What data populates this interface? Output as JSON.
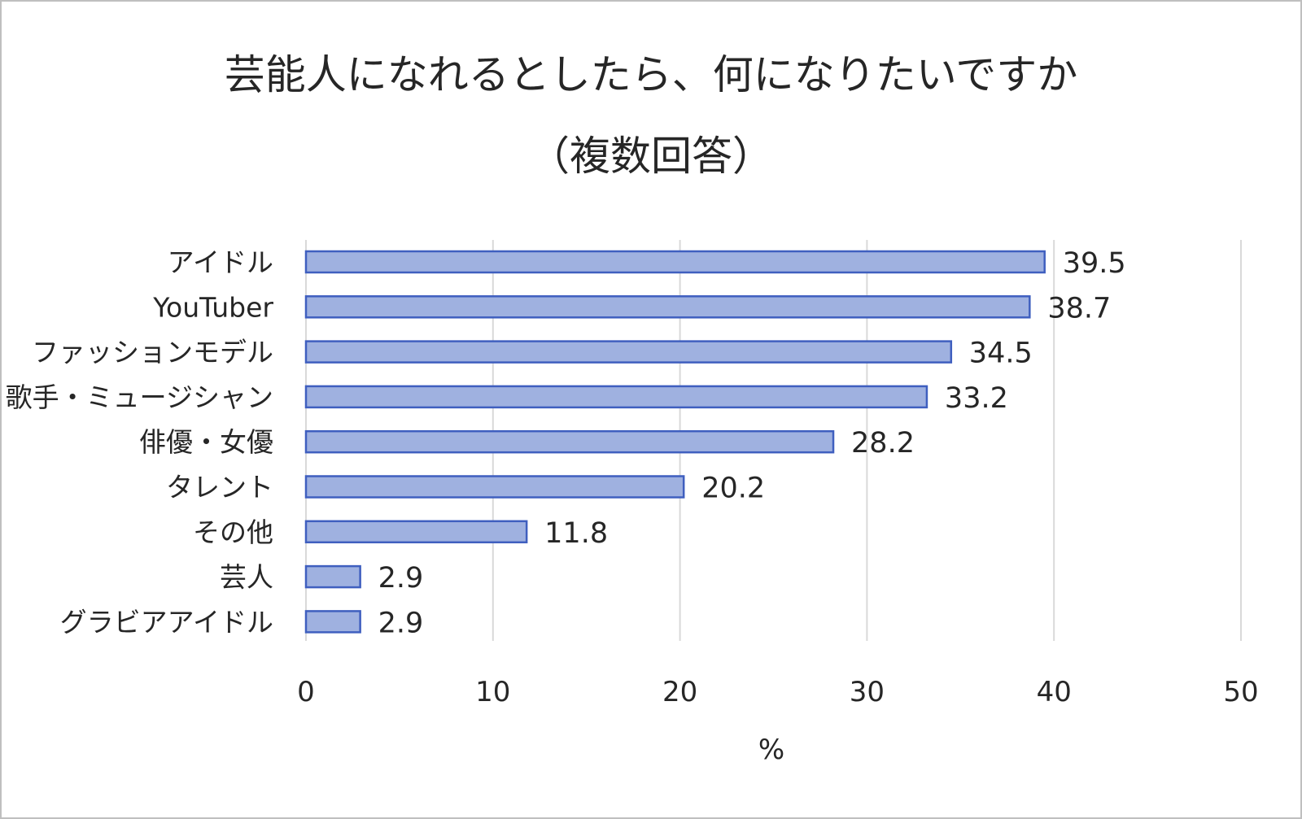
{
  "chart_data": {
    "type": "bar",
    "orientation": "horizontal",
    "title": "芸能人になれるとしたら、何になりたいですか",
    "subtitle": "（複数回答）",
    "categories": [
      "アイドル",
      "YouTuber",
      "ファッションモデル",
      "歌手・ミュージシャン",
      "俳優・女優",
      "タレント",
      "その他",
      "芸人",
      "グラビアアイドル"
    ],
    "values": [
      39.5,
      38.7,
      34.5,
      33.2,
      28.2,
      20.2,
      11.8,
      2.9,
      2.9
    ],
    "value_labels": [
      "39.5",
      "38.7",
      "34.5",
      "33.2",
      "28.2",
      "20.2",
      "11.8",
      "2.9",
      "2.9"
    ],
    "xlabel": "%",
    "ylabel": "",
    "xlim": [
      0,
      50
    ],
    "ticks": [
      0,
      10,
      20,
      30,
      40,
      50
    ],
    "tick_labels": [
      "0",
      "10",
      "20",
      "30",
      "40",
      "50"
    ],
    "grid": true,
    "legend": "none",
    "colors": {
      "bar_fill": "#9fb1e0",
      "bar_stroke": "#3f5fbf",
      "grid": "#d9d9d9",
      "text": "#262626"
    }
  }
}
